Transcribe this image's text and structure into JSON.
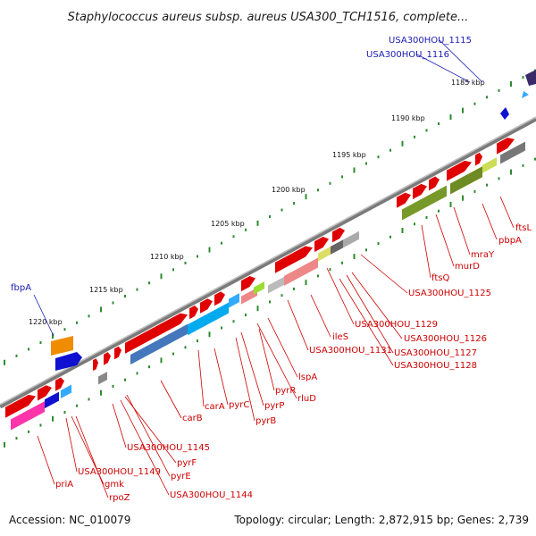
{
  "title": "Staphylococcus aureus subsp. aureus USA300_TCH1516, complete...",
  "footer": {
    "accession": "Accession: NC_010079",
    "summary": "Topology: circular; Length: 2,872,915 bp; Genes: 2,739"
  },
  "kbp_ticks": [
    "1185 kbp",
    "1190 kbp",
    "1195 kbp",
    "1200 kbp",
    "1205 kbp",
    "1210 kbp",
    "1215 kbp",
    "1220 kbp"
  ],
  "blue_labels": [
    "USA300HOU_1115",
    "USA300HOU_1116",
    "fbpA"
  ],
  "red_labels": [
    "ftsL",
    "pbpA",
    "mraY",
    "murD",
    "ftsQ",
    "USA300HOU_1125",
    "USA300HOU_1129",
    "USA300HOU_1126",
    "USA300HOU_1127",
    "USA300HOU_1128",
    "ileS",
    "USA300HOU_1131",
    "lspA",
    "rluD",
    "pyrR",
    "pyrP",
    "pyrB",
    "pyrC",
    "carA",
    "carB",
    "USA300HOU_1145",
    "pyrF",
    "pyrE",
    "USA300HOU_1144",
    "USA300HOU_1149",
    "gmk",
    "rpoZ",
    "priA"
  ],
  "colors": {
    "forward_cds": "#e00000",
    "reverse_cds": "#1010d0",
    "backbone": "#888888",
    "tick": "#2e8b2e",
    "red_label": "#cc0000",
    "blue_label": "#1a1ab0"
  }
}
